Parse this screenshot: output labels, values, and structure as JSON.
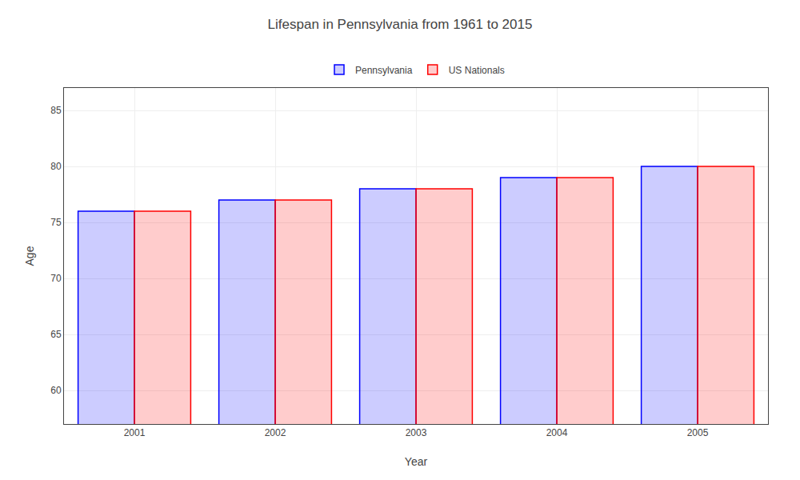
{
  "chart_data": {
    "type": "bar",
    "title": "Lifespan in Pennsylvania from 1961 to 2015",
    "xlabel": "Year",
    "ylabel": "Age",
    "categories": [
      "2001",
      "2002",
      "2003",
      "2004",
      "2005"
    ],
    "series": [
      {
        "name": "Pennsylvania",
        "color": "#0000ff",
        "values": [
          76,
          77,
          78,
          79,
          80
        ]
      },
      {
        "name": "US Nationals",
        "color": "#ff0000",
        "values": [
          76,
          77,
          78,
          79,
          80
        ]
      }
    ],
    "ylim": [
      57,
      87
    ],
    "yticks": [
      60,
      65,
      70,
      75,
      80,
      85
    ],
    "grid": true,
    "legend": "top"
  }
}
